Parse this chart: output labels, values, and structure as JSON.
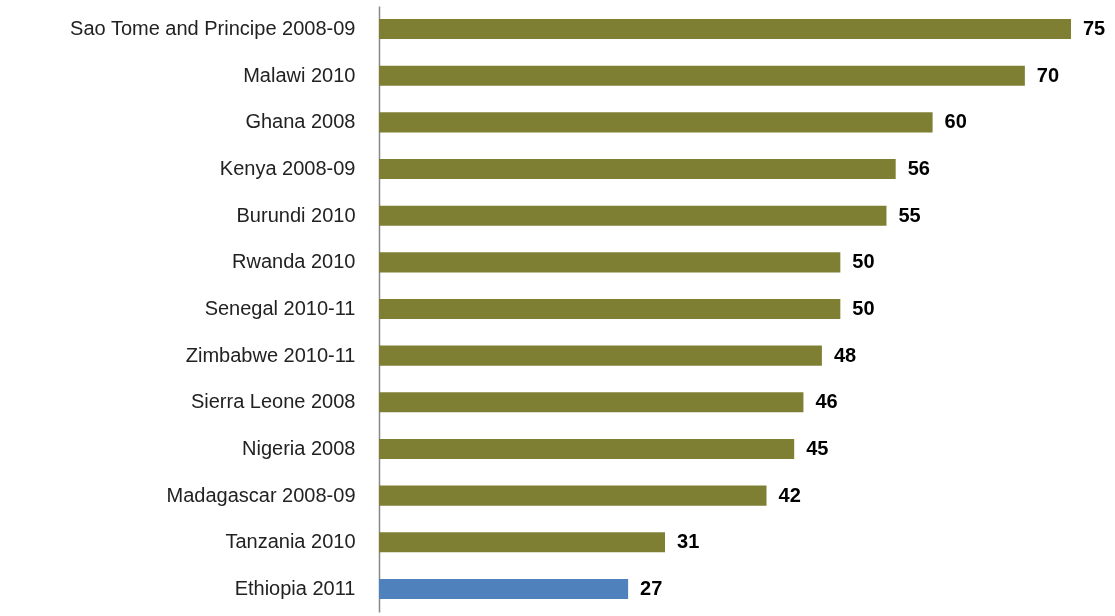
{
  "chart_data": {
    "type": "bar",
    "orientation": "horizontal",
    "data_labels": true,
    "categories": [
      "Sao Tome and Principe 2008-09",
      "Malawi 2010",
      "Ghana 2008",
      "Kenya 2008-09",
      "Burundi 2010",
      "Rwanda 2010",
      "Senegal 2010-11",
      "Zimbabwe 2010-11",
      "Sierra Leone 2008",
      "Nigeria 2008",
      "Madagascar 2008-09",
      "Tanzania 2010",
      "Ethiopia 2011"
    ],
    "values": [
      75,
      70,
      60,
      56,
      55,
      50,
      50,
      48,
      46,
      45,
      42,
      31,
      27
    ],
    "colors": [
      "#7f7f33",
      "#7f7f33",
      "#7f7f33",
      "#7f7f33",
      "#7f7f33",
      "#7f7f33",
      "#7f7f33",
      "#7f7f33",
      "#7f7f33",
      "#7f7f33",
      "#7f7f33",
      "#7f7f33",
      "#4f81bd"
    ]
  }
}
